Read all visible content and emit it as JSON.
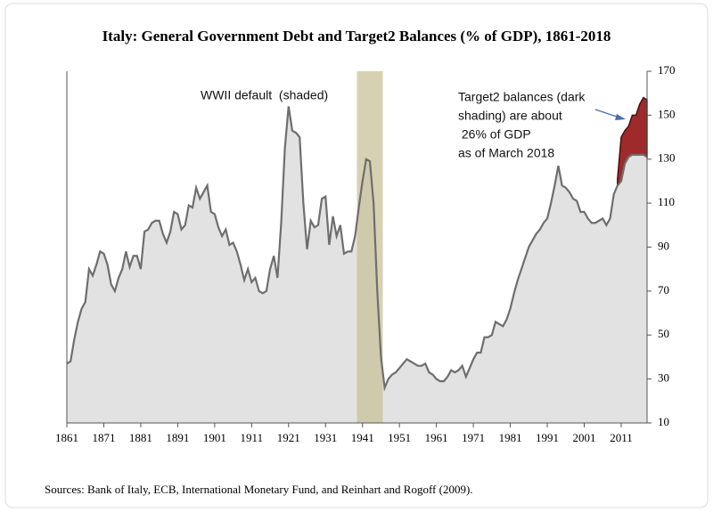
{
  "chart_data": {
    "type": "area",
    "title": "Italy: General Government Debt and Target2 Balances (% of GDP), 1861-2018",
    "source": "Sources: Bank of Italy, ECB, International Monetary Fund, and Reinhart and Rogoff (2009).",
    "annotation_wwii": "WWII default  (shaded)",
    "annotation_target2": [
      "Target2 balances (dark",
      "shading) are about",
      " 26% of GDP",
      "as of March 2018"
    ],
    "shade_x": [
      1939.5,
      1946.5
    ],
    "shade_color": "#c8c29a",
    "xlim": [
      1861,
      2018
    ],
    "xticks": [
      1861,
      1871,
      1881,
      1891,
      1901,
      1911,
      1921,
      1931,
      1941,
      1951,
      1961,
      1971,
      1981,
      1991,
      2001,
      2011
    ],
    "ylim": [
      10,
      170
    ],
    "yticks": [
      10,
      30,
      50,
      70,
      90,
      110,
      130,
      150,
      170
    ],
    "series": [
      {
        "color": "#e2e2e2",
        "line_color": "#6e6e6e",
        "x": [
          1861,
          1862,
          1863,
          1864,
          1865,
          1866,
          1867,
          1868,
          1869,
          1870,
          1871,
          1872,
          1873,
          1874,
          1875,
          1876,
          1877,
          1878,
          1879,
          1880,
          1881,
          1882,
          1883,
          1884,
          1885,
          1886,
          1887,
          1888,
          1889,
          1890,
          1891,
          1892,
          1893,
          1894,
          1895,
          1896,
          1897,
          1898,
          1899,
          1900,
          1901,
          1902,
          1903,
          1904,
          1905,
          1906,
          1907,
          1908,
          1909,
          1910,
          1911,
          1912,
          1913,
          1914,
          1915,
          1916,
          1917,
          1918,
          1919,
          1920,
          1921,
          1922,
          1923,
          1924,
          1925,
          1926,
          1927,
          1928,
          1929,
          1930,
          1931,
          1932,
          1933,
          1934,
          1935,
          1936,
          1937,
          1938,
          1939,
          1940,
          1941,
          1942,
          1943,
          1944,
          1945,
          1946,
          1947,
          1948,
          1949,
          1950,
          1951,
          1952,
          1953,
          1954,
          1955,
          1956,
          1957,
          1958,
          1959,
          1960,
          1961,
          1962,
          1963,
          1964,
          1965,
          1966,
          1967,
          1968,
          1969,
          1970,
          1971,
          1972,
          1973,
          1974,
          1975,
          1976,
          1977,
          1978,
          1979,
          1980,
          1981,
          1982,
          1983,
          1984,
          1985,
          1986,
          1987,
          1988,
          1989,
          1990,
          1991,
          1992,
          1993,
          1994,
          1995,
          1996,
          1997,
          1998,
          1999,
          2000,
          2001,
          2002,
          2003,
          2004,
          2005,
          2006,
          2007,
          2008,
          2009,
          2010,
          2011,
          2012,
          2013,
          2014,
          2015,
          2016,
          2017,
          2018
        ],
        "values": [
          37,
          38,
          48,
          56,
          62,
          65,
          80,
          77,
          82,
          88,
          87,
          82,
          73,
          70,
          76,
          80,
          88,
          81,
          86,
          86,
          80,
          97,
          98,
          101,
          102,
          102,
          96,
          92,
          97,
          106,
          105,
          98,
          100,
          109,
          108,
          117,
          112,
          115,
          118,
          106,
          105,
          99,
          95,
          98,
          91,
          92,
          88,
          82,
          75,
          80,
          74,
          76,
          70,
          69,
          70,
          80,
          86,
          76,
          101,
          135,
          154,
          143,
          142,
          140,
          110,
          89,
          102,
          99,
          100,
          112,
          113,
          91,
          104,
          95,
          100,
          87,
          88,
          88,
          95,
          108,
          120,
          130,
          129,
          110,
          70,
          40,
          26,
          30,
          32,
          33,
          35,
          37,
          39,
          38,
          37,
          36,
          36,
          37,
          33,
          32,
          30,
          29,
          29,
          31,
          34,
          33,
          34,
          36,
          31,
          35,
          39,
          42,
          42,
          49,
          49,
          50,
          56,
          55,
          54,
          57,
          62,
          69,
          75,
          80,
          85,
          90,
          93,
          96,
          98,
          101,
          103,
          110,
          118,
          127,
          118,
          117,
          115,
          112,
          111,
          106,
          106,
          103,
          101,
          101,
          102,
          103,
          100,
          103,
          114,
          118,
          120,
          128,
          131,
          132,
          132,
          132,
          132,
          131
        ]
      },
      {
        "color": "#9e2a2b",
        "line_color": "#4a1010",
        "x": [
          2010,
          2011,
          2012,
          2013,
          2014,
          2015,
          2016,
          2017,
          2018
        ],
        "values": [
          3,
          20,
          15,
          14,
          18,
          18,
          23,
          26,
          26
        ]
      }
    ]
  }
}
